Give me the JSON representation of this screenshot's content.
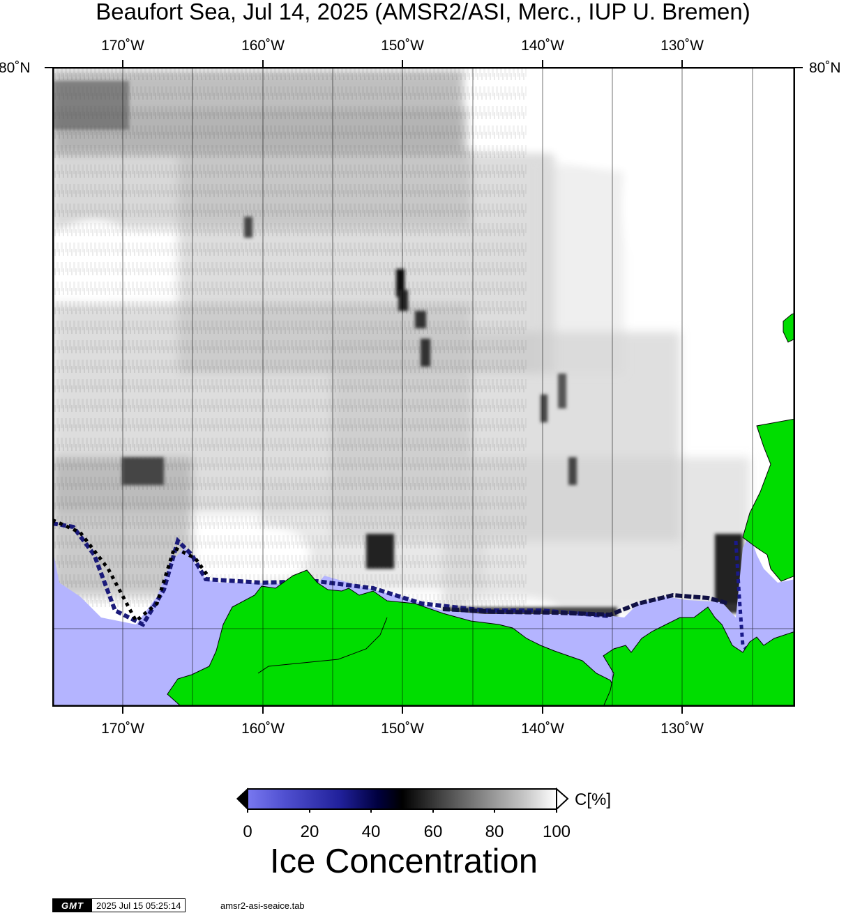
{
  "title": "Beaufort Sea, Jul 14, 2025 (AMSR2/ASI, Merc., IUP U. Bremen)",
  "lon_labels": [
    "170˚W",
    "160˚W",
    "150˚W",
    "140˚W",
    "130˚W"
  ],
  "lat_label": "80˚N",
  "colorbar": {
    "unit": "C[%]",
    "ticks": [
      "0",
      "20",
      "40",
      "60",
      "80",
      "100"
    ],
    "title": "Ice Concentration",
    "stops": [
      "#7878f0",
      "#5050d0",
      "#20209a",
      "#000040",
      "#000000",
      "#404040",
      "#909090",
      "#c8c8c8",
      "#ffffff"
    ]
  },
  "colors": {
    "land": "#00dd00",
    "ocean": "#b4b4ff",
    "ice_full": "#ffffff"
  },
  "stamp": {
    "logo": "GMT",
    "time": "2025 Jul 15 05:25:14",
    "file": "amsr2-asi-seaice.tab"
  }
}
